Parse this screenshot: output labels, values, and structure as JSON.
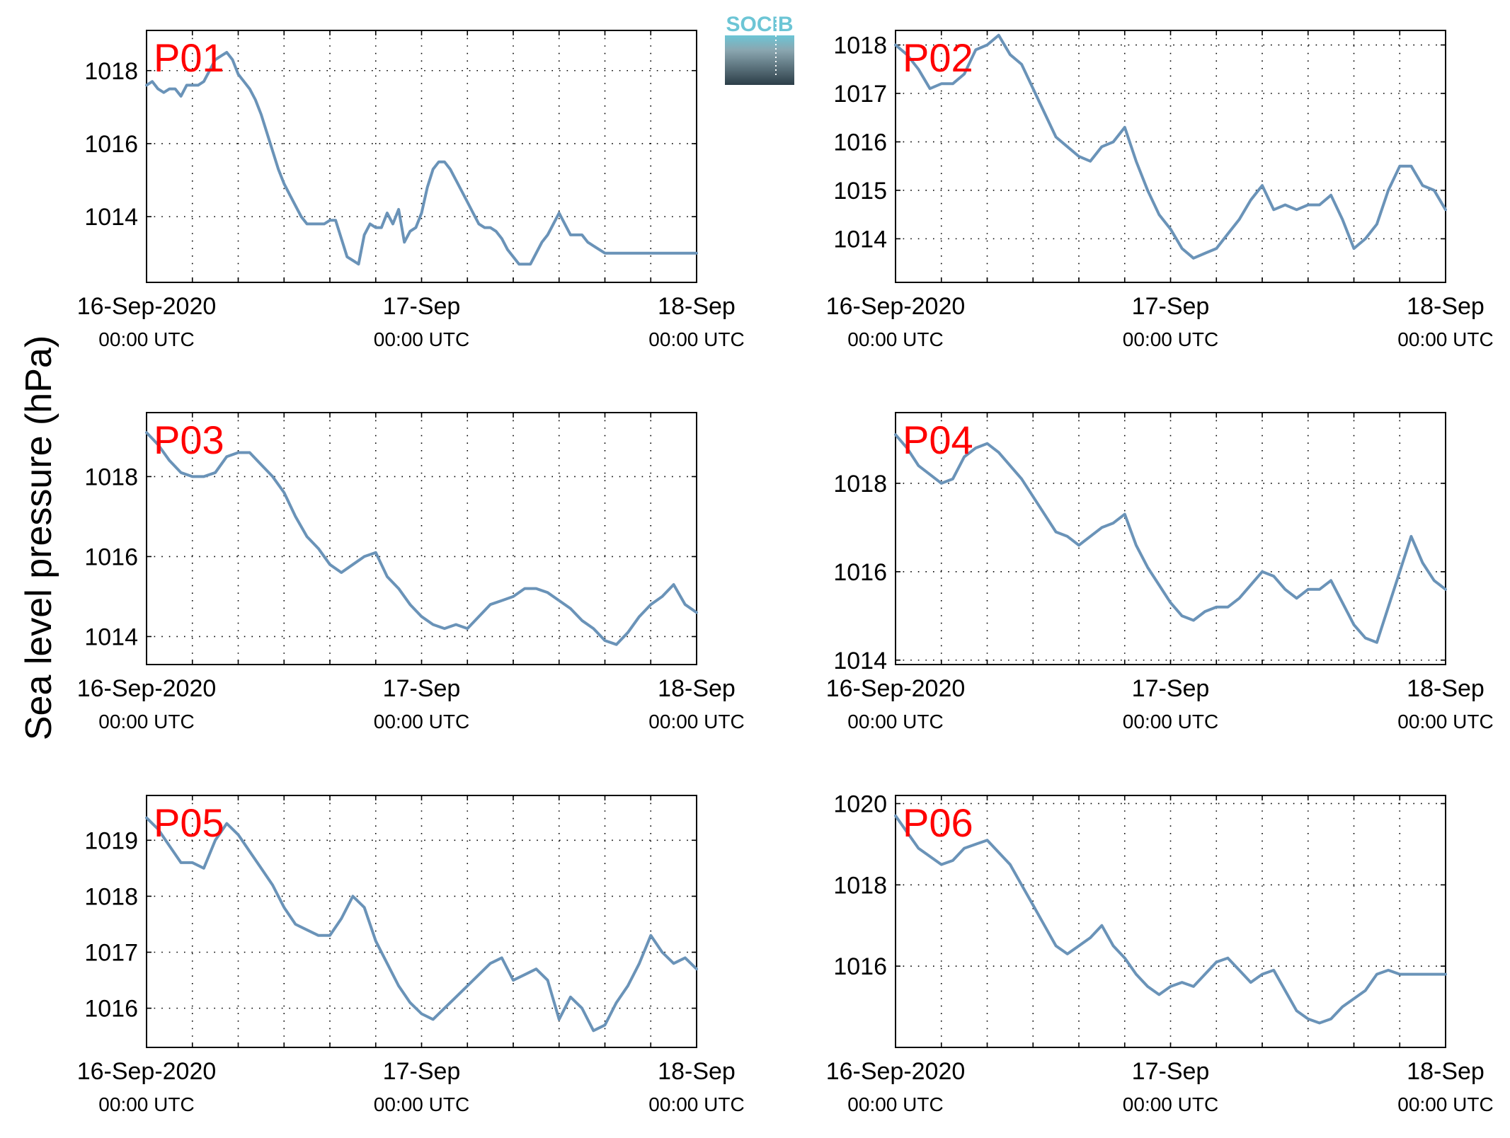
{
  "figure": {
    "ylabel": "Sea level pressure (hPa)",
    "logo_text": "SOCIB",
    "line_color": "#6a93b8",
    "label_color": "#ff0000"
  },
  "chart_data": [
    {
      "type": "line",
      "label": "P01",
      "ylim": [
        1012.2,
        1019.1
      ],
      "yticks": [
        1014,
        1016,
        1018
      ],
      "xlim": [
        0,
        48
      ],
      "xticklabels": [
        {
          "x": 0,
          "date": "16-Sep-2020",
          "time": "00:00 UTC"
        },
        {
          "x": 24,
          "date": "17-Sep",
          "time": "00:00 UTC"
        },
        {
          "x": 48,
          "date": "18-Sep",
          "time": "00:00 UTC"
        }
      ],
      "grid": true,
      "x": [
        0,
        0.5,
        1,
        1.5,
        2,
        2.5,
        3,
        3.5,
        4,
        4.5,
        5,
        5.5,
        6,
        6.5,
        7,
        7.5,
        8,
        8.5,
        9,
        9.5,
        10,
        10.5,
        11,
        11.5,
        12,
        12.5,
        13,
        13.5,
        14,
        14.5,
        15,
        15.5,
        16,
        16.5,
        17,
        17.5,
        18,
        18.5,
        19,
        19.5,
        20,
        20.5,
        21,
        21.5,
        22,
        22.5,
        23,
        23.5,
        24,
        24.5,
        25,
        25.5,
        26,
        26.5,
        27,
        27.5,
        28,
        28.5,
        29,
        29.5,
        30,
        30.5,
        31,
        31.5,
        32,
        32.5,
        33,
        33.5,
        34,
        34.5,
        35,
        35.5,
        36,
        36.5,
        37,
        37.5,
        38,
        38.5,
        39,
        39.5,
        40,
        40.5,
        41,
        41.5,
        42,
        42.5,
        43,
        43.5,
        44,
        44.5,
        45,
        45.5,
        46,
        46.5,
        47,
        47.5,
        48
      ],
      "values": [
        1017.6,
        1017.7,
        1017.5,
        1017.4,
        1017.5,
        1017.5,
        1017.3,
        1017.6,
        1017.6,
        1017.6,
        1017.7,
        1018.0,
        1018.3,
        1018.4,
        1018.5,
        1018.3,
        1017.9,
        1017.7,
        1017.5,
        1017.2,
        1016.8,
        1016.3,
        1015.8,
        1015.3,
        1014.9,
        1014.6,
        1014.3,
        1014.0,
        1013.8,
        1013.8,
        1013.8,
        1013.8,
        1013.9,
        1013.9,
        1013.4,
        1012.9,
        1012.8,
        1012.7,
        1013.5,
        1013.8,
        1013.7,
        1013.7,
        1014.1,
        1013.8,
        1014.2,
        1013.3,
        1013.6,
        1013.7,
        1014.1,
        1014.8,
        1015.3,
        1015.5,
        1015.5,
        1015.3,
        1015.0,
        1014.7,
        1014.4,
        1014.1,
        1013.8,
        1013.7,
        1013.7,
        1013.6,
        1013.4,
        1013.1,
        1012.9,
        1012.7,
        1012.7,
        1012.7,
        1013.0,
        1013.3,
        1013.5,
        1013.8,
        1014.1,
        1013.8,
        1013.5,
        1013.5,
        1013.5,
        1013.3,
        1013.2,
        1013.1,
        1013.0,
        1013.0,
        1013.0,
        1013.0,
        1013.0,
        1013.0,
        1013.0,
        1013.0,
        1013.0,
        1013.0,
        1013.0,
        1013.0,
        1013.0,
        1013.0,
        1013.0,
        1013.0,
        1013.0
      ]
    },
    {
      "type": "line",
      "label": "P02",
      "ylim": [
        1013.1,
        1018.3
      ],
      "yticks": [
        1014,
        1015,
        1016,
        1017,
        1018
      ],
      "xlim": [
        0,
        48
      ],
      "xticklabels": [
        {
          "x": 0,
          "date": "16-Sep-2020",
          "time": "00:00 UTC"
        },
        {
          "x": 24,
          "date": "17-Sep",
          "time": "00:00 UTC"
        },
        {
          "x": 48,
          "date": "18-Sep",
          "time": "00:00 UTC"
        }
      ],
      "grid": true,
      "x": [
        0,
        1,
        2,
        3,
        4,
        5,
        6,
        7,
        8,
        9,
        10,
        11,
        12,
        13,
        14,
        15,
        16,
        17,
        18,
        19,
        20,
        21,
        22,
        23,
        24,
        25,
        26,
        27,
        28,
        29,
        30,
        31,
        32,
        33,
        34,
        35,
        36,
        37,
        38,
        39,
        40,
        41,
        42,
        43,
        44,
        45,
        46,
        47,
        48
      ],
      "values": [
        1018.0,
        1017.8,
        1017.5,
        1017.1,
        1017.2,
        1017.2,
        1017.4,
        1017.9,
        1018.0,
        1018.2,
        1017.8,
        1017.6,
        1017.1,
        1016.6,
        1016.1,
        1015.9,
        1015.7,
        1015.6,
        1015.9,
        1016.0,
        1016.3,
        1015.6,
        1015.0,
        1014.5,
        1014.2,
        1013.8,
        1013.6,
        1013.7,
        1013.8,
        1014.1,
        1014.4,
        1014.8,
        1015.1,
        1014.6,
        1014.7,
        1014.6,
        1014.7,
        1014.7,
        1014.9,
        1014.4,
        1013.8,
        1014.0,
        1014.3,
        1015.0,
        1015.5,
        1015.5,
        1015.1,
        1015.0,
        1014.6
      ]
    },
    {
      "type": "line",
      "label": "P03",
      "ylim": [
        1013.3,
        1019.6
      ],
      "yticks": [
        1014,
        1016,
        1018
      ],
      "xlim": [
        0,
        48
      ],
      "xticklabels": [
        {
          "x": 0,
          "date": "16-Sep-2020",
          "time": "00:00 UTC"
        },
        {
          "x": 24,
          "date": "17-Sep",
          "time": "00:00 UTC"
        },
        {
          "x": 48,
          "date": "18-Sep",
          "time": "00:00 UTC"
        }
      ],
      "grid": true,
      "x": [
        0,
        1,
        2,
        3,
        4,
        5,
        6,
        7,
        8,
        9,
        10,
        11,
        12,
        13,
        14,
        15,
        16,
        17,
        18,
        19,
        20,
        21,
        22,
        23,
        24,
        25,
        26,
        27,
        28,
        29,
        30,
        31,
        32,
        33,
        34,
        35,
        36,
        37,
        38,
        39,
        40,
        41,
        42,
        43,
        44,
        45,
        46,
        47,
        48
      ],
      "values": [
        1019.1,
        1018.8,
        1018.4,
        1018.1,
        1018.0,
        1018.0,
        1018.1,
        1018.5,
        1018.6,
        1018.6,
        1018.3,
        1018.0,
        1017.6,
        1017.0,
        1016.5,
        1016.2,
        1015.8,
        1015.6,
        1015.8,
        1016.0,
        1016.1,
        1015.5,
        1015.2,
        1014.8,
        1014.5,
        1014.3,
        1014.2,
        1014.3,
        1014.2,
        1014.5,
        1014.8,
        1014.9,
        1015.0,
        1015.2,
        1015.2,
        1015.1,
        1014.9,
        1014.7,
        1014.4,
        1014.2,
        1013.9,
        1013.8,
        1014.1,
        1014.5,
        1014.8,
        1015.0,
        1015.3,
        1014.8,
        1014.6
      ]
    },
    {
      "type": "line",
      "label": "P04",
      "ylim": [
        1013.9,
        1019.6
      ],
      "yticks": [
        1014,
        1016,
        1018
      ],
      "xlim": [
        0,
        48
      ],
      "xticklabels": [
        {
          "x": 0,
          "date": "16-Sep-2020",
          "time": "00:00 UTC"
        },
        {
          "x": 24,
          "date": "17-Sep",
          "time": "00:00 UTC"
        },
        {
          "x": 48,
          "date": "18-Sep",
          "time": "00:00 UTC"
        }
      ],
      "grid": true,
      "x": [
        0,
        1,
        2,
        3,
        4,
        5,
        6,
        7,
        8,
        9,
        10,
        11,
        12,
        13,
        14,
        15,
        16,
        17,
        18,
        19,
        20,
        21,
        22,
        23,
        24,
        25,
        26,
        27,
        28,
        29,
        30,
        31,
        32,
        33,
        34,
        35,
        36,
        37,
        38,
        39,
        40,
        41,
        42,
        43,
        44,
        45,
        46,
        47,
        48
      ],
      "values": [
        1019.1,
        1018.8,
        1018.4,
        1018.2,
        1018.0,
        1018.1,
        1018.6,
        1018.8,
        1018.9,
        1018.7,
        1018.4,
        1018.1,
        1017.7,
        1017.3,
        1016.9,
        1016.8,
        1016.6,
        1016.8,
        1017.0,
        1017.1,
        1017.3,
        1016.6,
        1016.1,
        1015.7,
        1015.3,
        1015.0,
        1014.9,
        1015.1,
        1015.2,
        1015.2,
        1015.4,
        1015.7,
        1016.0,
        1015.9,
        1015.6,
        1015.4,
        1015.6,
        1015.6,
        1015.8,
        1015.3,
        1014.8,
        1014.5,
        1014.4,
        1015.2,
        1016.0,
        1016.8,
        1016.2,
        1015.8,
        1015.6
      ]
    },
    {
      "type": "line",
      "label": "P05",
      "ylim": [
        1015.3,
        1019.8
      ],
      "yticks": [
        1016,
        1017,
        1018,
        1019
      ],
      "xlim": [
        0,
        48
      ],
      "xticklabels": [
        {
          "x": 0,
          "date": "16-Sep-2020",
          "time": "00:00 UTC"
        },
        {
          "x": 24,
          "date": "17-Sep",
          "time": "00:00 UTC"
        },
        {
          "x": 48,
          "date": "18-Sep",
          "time": "00:00 UTC"
        }
      ],
      "grid": true,
      "x": [
        0,
        1,
        2,
        3,
        4,
        5,
        6,
        7,
        8,
        9,
        10,
        11,
        12,
        13,
        14,
        15,
        16,
        17,
        18,
        19,
        20,
        21,
        22,
        23,
        24,
        25,
        26,
        27,
        28,
        29,
        30,
        31,
        32,
        33,
        34,
        35,
        36,
        37,
        38,
        39,
        40,
        41,
        42,
        43,
        44,
        45,
        46,
        47,
        48
      ],
      "values": [
        1019.4,
        1019.2,
        1018.9,
        1018.6,
        1018.6,
        1018.5,
        1019.0,
        1019.3,
        1019.1,
        1018.8,
        1018.5,
        1018.2,
        1017.8,
        1017.5,
        1017.4,
        1017.3,
        1017.3,
        1017.6,
        1018.0,
        1017.8,
        1017.2,
        1016.8,
        1016.4,
        1016.1,
        1015.9,
        1015.8,
        1016.0,
        1016.2,
        1016.4,
        1016.6,
        1016.8,
        1016.9,
        1016.5,
        1016.6,
        1016.7,
        1016.5,
        1015.8,
        1016.2,
        1016.0,
        1015.6,
        1015.7,
        1016.1,
        1016.4,
        1016.8,
        1017.3,
        1017.0,
        1016.8,
        1016.9,
        1016.7
      ]
    },
    {
      "type": "line",
      "label": "P06",
      "ylim": [
        1014.0,
        1020.2
      ],
      "yticks": [
        1016,
        1018,
        1020
      ],
      "xlim": [
        0,
        48
      ],
      "xticklabels": [
        {
          "x": 0,
          "date": "16-Sep-2020",
          "time": "00:00 UTC"
        },
        {
          "x": 24,
          "date": "17-Sep",
          "time": "00:00 UTC"
        },
        {
          "x": 48,
          "date": "18-Sep",
          "time": "00:00 UTC"
        }
      ],
      "grid": true,
      "x": [
        0,
        1,
        2,
        3,
        4,
        5,
        6,
        7,
        8,
        9,
        10,
        11,
        12,
        13,
        14,
        15,
        16,
        17,
        18,
        19,
        20,
        21,
        22,
        23,
        24,
        25,
        26,
        27,
        28,
        29,
        30,
        31,
        32,
        33,
        34,
        35,
        36,
        37,
        38,
        39,
        40,
        41,
        42,
        43,
        44,
        45,
        46,
        47,
        48
      ],
      "values": [
        1019.7,
        1019.3,
        1018.9,
        1018.7,
        1018.5,
        1018.6,
        1018.9,
        1019.0,
        1019.1,
        1018.8,
        1018.5,
        1018.0,
        1017.5,
        1017.0,
        1016.5,
        1016.3,
        1016.5,
        1016.7,
        1017.0,
        1016.5,
        1016.2,
        1015.8,
        1015.5,
        1015.3,
        1015.5,
        1015.6,
        1015.5,
        1015.8,
        1016.1,
        1016.2,
        1015.9,
        1015.6,
        1015.8,
        1015.9,
        1015.4,
        1014.9,
        1014.7,
        1014.6,
        1014.7,
        1015.0,
        1015.2,
        1015.4,
        1015.8,
        1015.9,
        1015.8,
        1015.8,
        1015.8,
        1015.8,
        1015.8
      ]
    }
  ]
}
